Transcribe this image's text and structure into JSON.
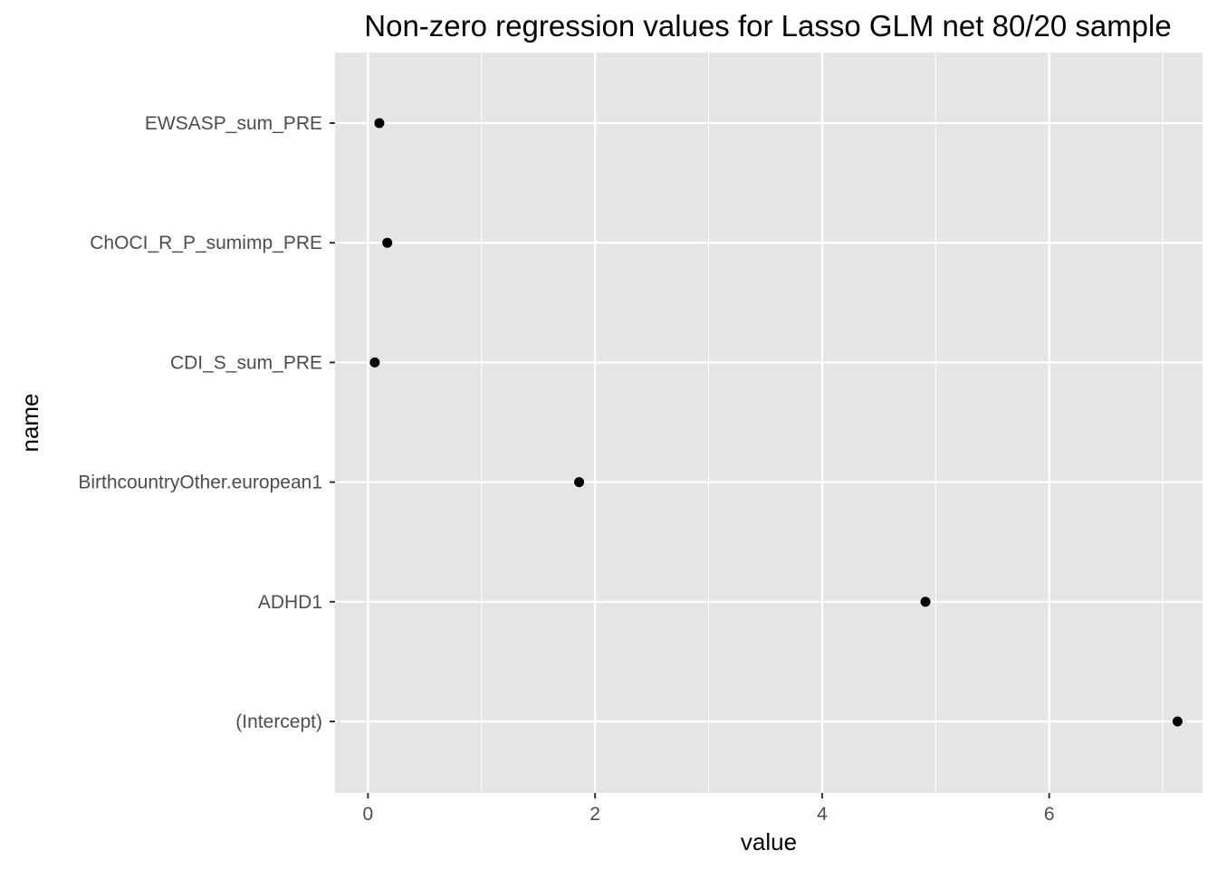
{
  "chart_data": {
    "type": "scatter",
    "title": "Non-zero regression values for Lasso GLM net 80/20 sample",
    "xlabel": "value",
    "ylabel": "name",
    "xlim": [
      -0.29,
      7.35
    ],
    "x_ticks": [
      "0",
      "2",
      "4",
      "6"
    ],
    "x_tick_values": [
      0,
      2,
      4,
      6
    ],
    "grid": true,
    "categories": [
      "EWSASP_sum_PRE",
      "ChOCI_R_P_sumimp_PRE",
      "CDI_S_sum_PRE",
      "BirthcountryOther.european1",
      "ADHD1",
      "(Intercept)"
    ],
    "values": [
      0.1,
      0.17,
      0.06,
      1.86,
      4.91,
      7.13
    ],
    "colors": {
      "panel": "#e5e5e5",
      "grid": "#ffffff",
      "point": "#000000",
      "tick_text": "#4d4d4d"
    }
  }
}
